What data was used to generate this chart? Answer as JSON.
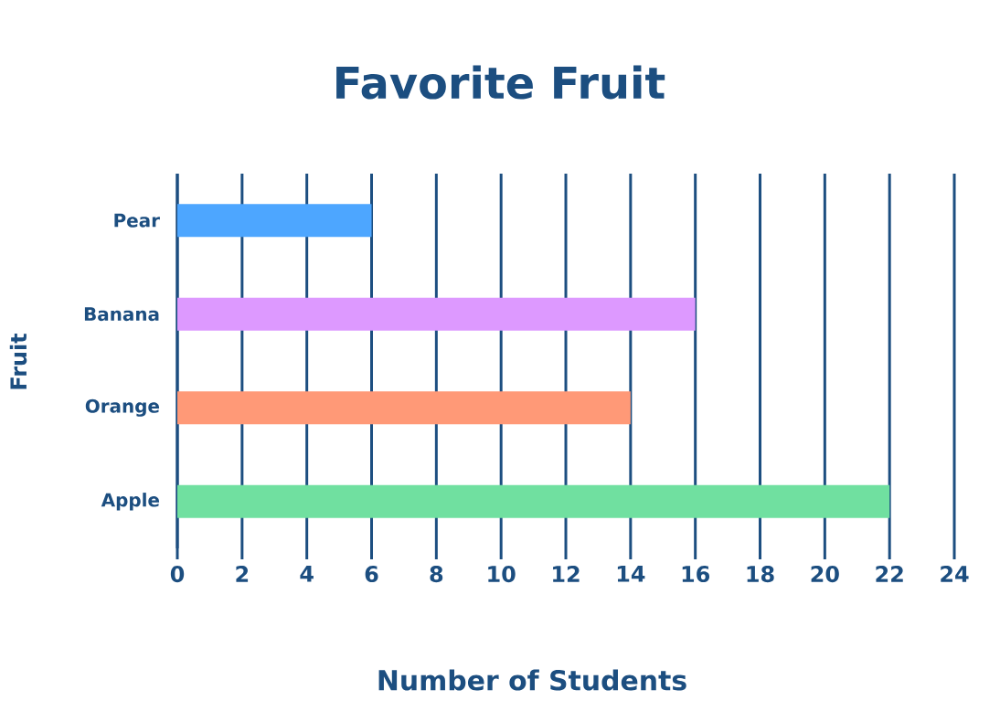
{
  "chart_data": {
    "type": "bar",
    "orientation": "horizontal",
    "title": "Favorite Fruit",
    "xlabel": "Number of Students",
    "ylabel": "Fruit",
    "categories": [
      "Pear",
      "Banana",
      "Orange",
      "Apple"
    ],
    "values": [
      6,
      16,
      14,
      22
    ],
    "colors": [
      "#4da6ff",
      "#dd99ff",
      "#ff9977",
      "#70e0a0"
    ],
    "xlim": [
      0,
      24
    ],
    "xticks": [
      0,
      2,
      4,
      6,
      8,
      10,
      12,
      14,
      16,
      18,
      20,
      22,
      24
    ],
    "grid": "x"
  }
}
